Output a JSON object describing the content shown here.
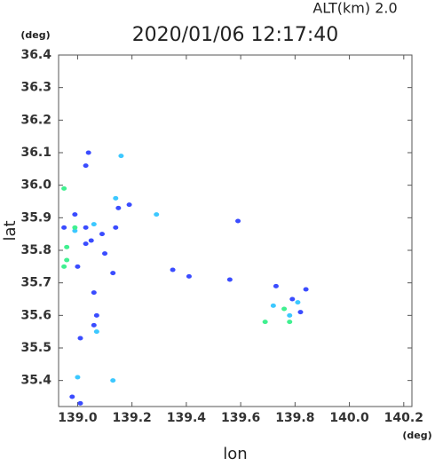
{
  "chart_data": {
    "type": "scatter",
    "title": "2020/01/06 12:17:40",
    "subtitle": "ALT(km) 2.0",
    "x_label": "lon",
    "y_label": "lat",
    "x_unit": "(deg)",
    "y_unit": "(deg)",
    "xlim": [
      138.93,
      140.23
    ],
    "ylim": [
      35.32,
      36.4
    ],
    "xticks": [
      {
        "value": 139.0,
        "label": "139.0"
      },
      139.2,
      139.4,
      139.6,
      139.8,
      {
        "value": 140.0,
        "label": "140.0"
      },
      140.2
    ],
    "yticks": [
      36.4,
      36.3,
      36.2,
      36.1,
      {
        "value": 36.0,
        "label": "36.0"
      },
      35.9,
      35.8,
      35.7,
      35.6,
      35.5,
      35.4
    ],
    "series": [
      {
        "color": "#3a4cff",
        "x": [
          139.04,
          139.03,
          138.99,
          138.95,
          139.03,
          139.09,
          139.03,
          139.1,
          139.14,
          139.15,
          139.19,
          139.06,
          139.07,
          139.06,
          139.01,
          139.01,
          138.98,
          139.0,
          139.13,
          139.05,
          139.59,
          139.56,
          139.73,
          139.79,
          139.84,
          139.82,
          139.41,
          139.35
        ],
        "y": [
          36.1,
          36.06,
          35.91,
          35.87,
          35.87,
          35.85,
          35.82,
          35.79,
          35.87,
          35.93,
          35.94,
          35.67,
          35.6,
          35.57,
          35.53,
          35.33,
          35.35,
          35.75,
          35.73,
          35.83,
          35.89,
          35.71,
          35.69,
          35.65,
          35.68,
          35.61,
          35.72,
          35.74
        ]
      },
      {
        "color": "#3cc8ff",
        "x": [
          139.16,
          139.14,
          139.29,
          139.07,
          139.0,
          139.13,
          138.99,
          139.06,
          139.78,
          139.81,
          139.72
        ],
        "y": [
          36.09,
          35.96,
          35.91,
          35.55,
          35.41,
          35.4,
          35.86,
          35.88,
          35.6,
          35.64,
          35.63
        ]
      },
      {
        "color": "#40f090",
        "x": [
          138.96,
          138.96,
          138.95,
          138.95,
          138.99,
          139.76,
          139.69,
          139.78
        ],
        "y": [
          35.81,
          35.77,
          35.75,
          35.99,
          35.87,
          35.62,
          35.58,
          35.58
        ]
      }
    ]
  }
}
